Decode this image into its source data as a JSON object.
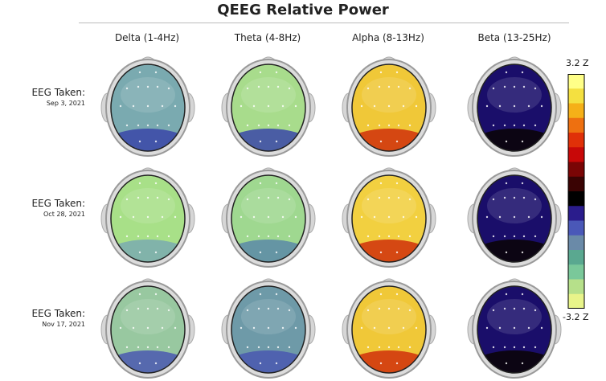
{
  "title": "QEEG Relative Power",
  "bands": [
    {
      "label": "Delta (1-4Hz)"
    },
    {
      "label": "Theta (4-8Hz)"
    },
    {
      "label": "Alpha (8-13Hz)"
    },
    {
      "label": "Beta (13-25Hz)"
    }
  ],
  "sessions": [
    {
      "label": "EEG Taken:",
      "date": "Sep 3, 2021"
    },
    {
      "label": "EEG Taken:",
      "date": "Oct 28, 2021"
    },
    {
      "label": "EEG Taken:",
      "date": "Nov 17, 2021"
    }
  ],
  "scale": {
    "max_label": "3.2 Z",
    "min_label": "-3.2 Z",
    "colors": [
      "#ffff88",
      "#f4e040",
      "#f5b018",
      "#ee7010",
      "#e03008",
      "#c80808",
      "#7a0505",
      "#3a0303",
      "#000000",
      "#2a1c8c",
      "#4a58b8",
      "#6a8aa8",
      "#5aa890",
      "#7ac89a",
      "#b6e08a",
      "#e8f48a"
    ]
  },
  "maps": [
    [
      "#7aaab0",
      "#a8dc8c",
      "#f0c838",
      "#1a0e6a"
    ],
    [
      "#a8e088",
      "#9fd890",
      "#f2d040",
      "#1a0e6a"
    ],
    [
      "#98c8a0",
      "#6e9aa8",
      "#f0c838",
      "#1a0e6a"
    ]
  ],
  "map_accents": [
    [
      "#3a46a8",
      "#3a46a8",
      "#d0300c",
      "#0a0303"
    ],
    [
      "#7aaab0",
      "#5a8aa8",
      "#d0300c",
      "#0a0303"
    ],
    [
      "#4a58b0",
      "#4a58b0",
      "#d0300c",
      "#0a0303"
    ]
  ]
}
